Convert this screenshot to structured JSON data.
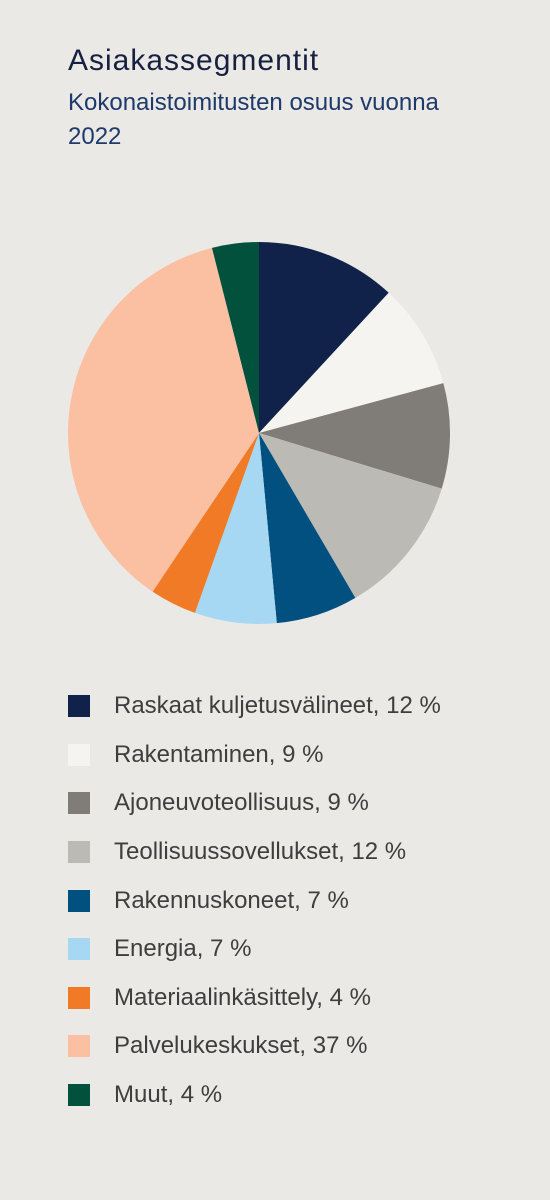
{
  "title": "Asiakassegmentit",
  "subtitle": "Kokonaistoimitusten osuus vuonna 2022",
  "chart_data": {
    "type": "pie",
    "title": "Asiakassegmentit",
    "subtitle": "Kokonaistoimitusten osuus vuonna 2022",
    "unit": "%",
    "legend_position": "bottom",
    "slices": [
      {
        "label": "Raskaat kuljetusvälineet",
        "value": 12,
        "color": "#11224a",
        "legend_text": "Raskaat kuljetusvälineet, 12 %"
      },
      {
        "label": "Rakentaminen",
        "value": 9,
        "color": "#f5f4f1",
        "legend_text": "Rakentaminen, 9 %"
      },
      {
        "label": "Ajoneuvoteollisuus",
        "value": 9,
        "color": "#807d78",
        "legend_text": "Ajoneuvoteollisuus, 9 %"
      },
      {
        "label": "Teollisuussovellukset",
        "value": 12,
        "color": "#bcbab4",
        "legend_text": "Teollisuussovellukset, 12 %"
      },
      {
        "label": "Rakennuskoneet",
        "value": 7,
        "color": "#02507f",
        "legend_text": "Rakennuskoneet, 7 %"
      },
      {
        "label": "Energia",
        "value": 7,
        "color": "#a7d8f3",
        "legend_text": "Energia, 7 %"
      },
      {
        "label": "Materiaalinkäsittely",
        "value": 4,
        "color": "#f07a25",
        "legend_text": "Materiaalinkäsittely, 4 %"
      },
      {
        "label": "Palvelukeskukset",
        "value": 37,
        "color": "#fbbfa2",
        "legend_text": "Palvelukeskukset, 37 %"
      },
      {
        "label": "Muut",
        "value": 4,
        "color": "#02513d",
        "legend_text": "Muut, 4 %"
      }
    ]
  }
}
